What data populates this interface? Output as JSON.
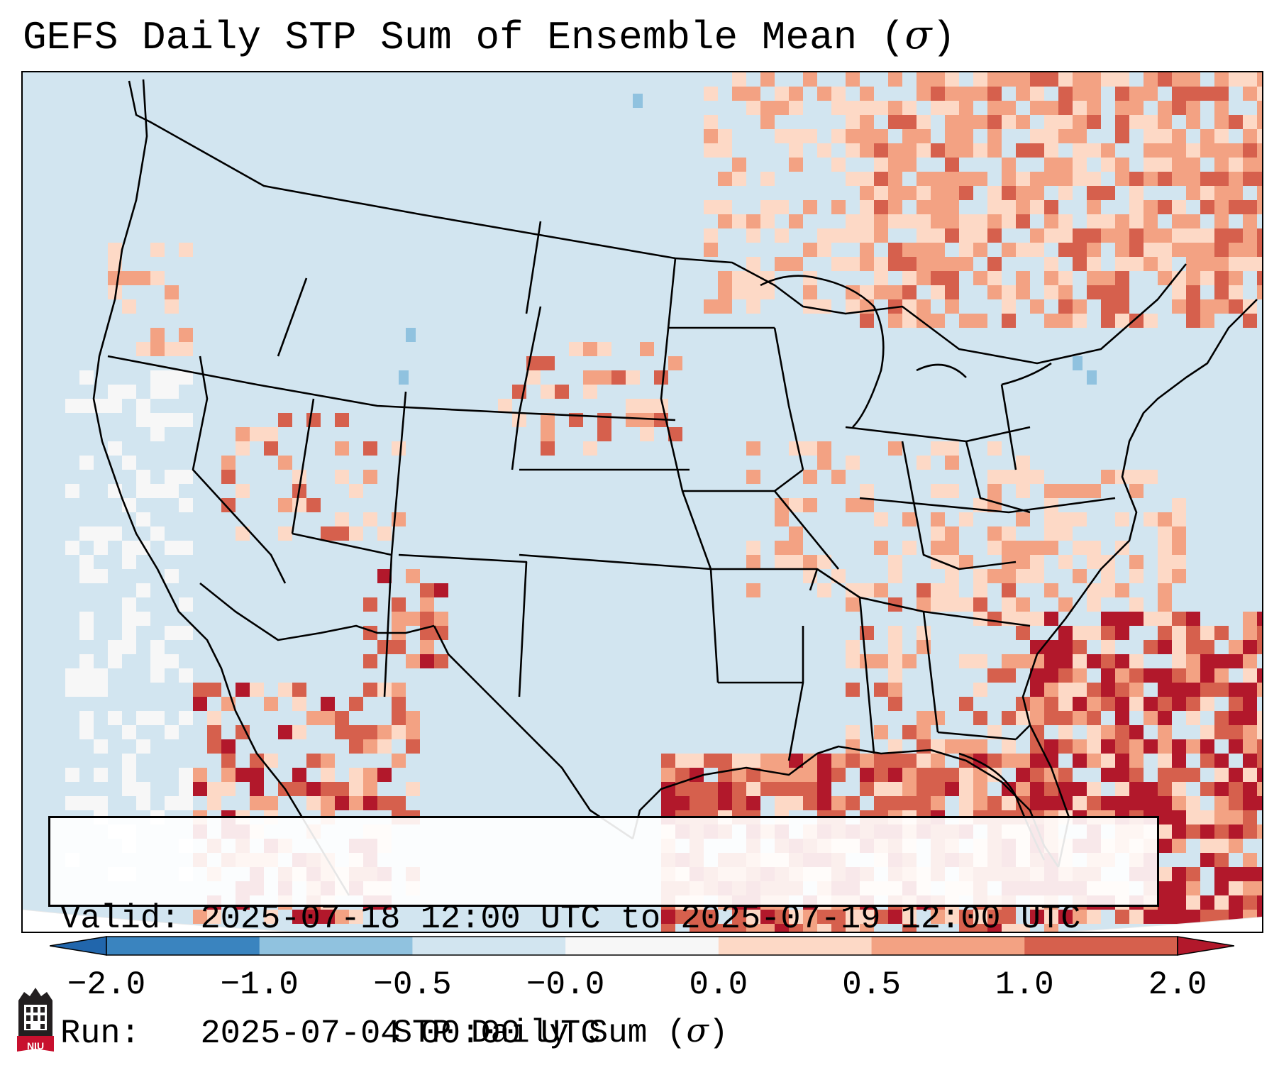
{
  "title": {
    "text": "GEFS Daily STP Sum of Ensemble Mean (",
    "symbol": "σ",
    "close": ")"
  },
  "info": {
    "valid_label": "Valid:",
    "valid_value": "2025-07-18 12:00 UTC to 2025-07-19 12:00 UTC",
    "run_label": "Run:",
    "run_value": "2025-07-04 00:00 UTC"
  },
  "colorbar": {
    "label_text": "STP Daily Sum (",
    "label_symbol": "σ",
    "label_close": ")",
    "ticks": [
      "−2.0",
      "−1.0",
      "−0.5",
      "−0.0",
      "0.0",
      "0.5",
      "1.0",
      "2.0"
    ],
    "colors": [
      "#3a84bf",
      "#90c2df",
      "#d2e5f0",
      "#f7f7f7",
      "#fdd9c6",
      "#f3a283",
      "#d6604d",
      "#b2182b"
    ],
    "under_color": "#2166ac",
    "over_color": "#b2182b"
  },
  "logo": {
    "text": "NIU",
    "color": "#c8102e"
  },
  "map": {
    "ocean_color": "#d2e5f0",
    "land_color": "#d2e5f0",
    "border_color": "#000000"
  }
}
